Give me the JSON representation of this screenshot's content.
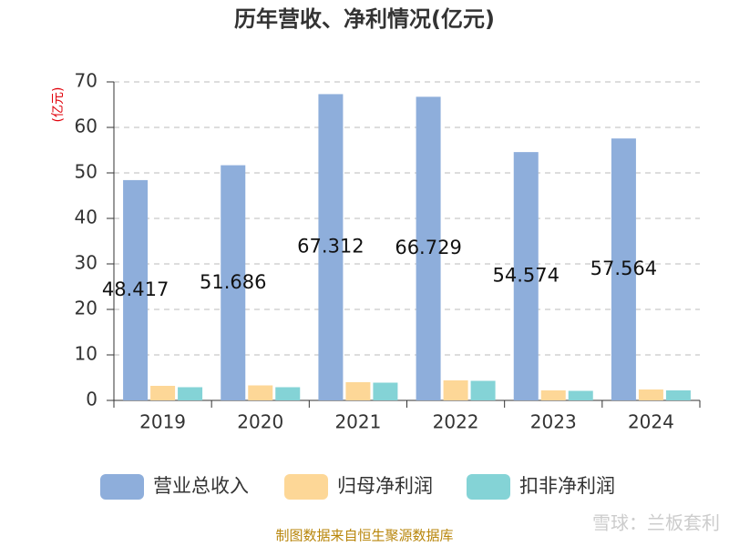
{
  "chart_data": {
    "type": "bar",
    "title": "历年营收、净利情况(亿元)",
    "y_label": "(亿元)",
    "categories": [
      "2019",
      "2020",
      "2021",
      "2022",
      "2023",
      "2024"
    ],
    "series": [
      {
        "name": "营业总收入",
        "color": "#8eaedb",
        "values": [
          48.417,
          51.686,
          67.312,
          66.729,
          54.574,
          57.564
        ]
      },
      {
        "name": "归母净利润",
        "color": "#fdd797",
        "values": [
          3.2,
          3.3,
          4.0,
          4.4,
          2.2,
          2.4
        ]
      },
      {
        "name": "扣非净利润",
        "color": "#84d3d6",
        "values": [
          2.9,
          2.9,
          3.9,
          4.3,
          2.1,
          2.2
        ]
      }
    ],
    "data_labels_series": 0,
    "ylim": [
      0,
      70
    ],
    "yticks": [
      0,
      10,
      20,
      30,
      40,
      50,
      60,
      70
    ],
    "grid": true,
    "source": "制图数据来自恒生聚源数据库",
    "watermark": "雪球：兰板套利"
  }
}
